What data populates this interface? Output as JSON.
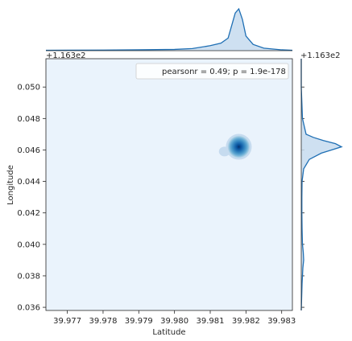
{
  "chart_data": {
    "type": "kde-joint",
    "title": "",
    "xlabel": "Latitude",
    "ylabel": "Longitude",
    "xlim": [
      39.9764,
      39.9833
    ],
    "ylim": [
      0.0358,
      0.0518
    ],
    "x_ticks": [
      "39.977",
      "39.978",
      "39.979",
      "39.980",
      "39.981",
      "39.982",
      "39.983"
    ],
    "x_tick_values": [
      39.977,
      39.978,
      39.979,
      39.98,
      39.981,
      39.982,
      39.983
    ],
    "y_ticks": [
      "0.036",
      "0.038",
      "0.040",
      "0.042",
      "0.044",
      "0.046",
      "0.048",
      "0.050"
    ],
    "y_tick_values": [
      0.036,
      0.038,
      0.04,
      0.042,
      0.044,
      0.046,
      0.048,
      0.05
    ],
    "y_offset_label": "+1.163e2",
    "top_offset_label": "+1.163e2",
    "right_offset_label": "+1.163e2",
    "legend_text": "pearsonr = 0.49; p = 1.9e-178",
    "legend_placement": "top-right",
    "density_peak": {
      "x": 39.9818,
      "y": 0.0462
    },
    "density_tail": {
      "x": 39.9814,
      "y": 0.0459
    },
    "colors": {
      "background": "#eaf3fc",
      "peak": "#08306b",
      "line": "#1f6fb4",
      "fill": "#c6dbef"
    },
    "marginal_x": {
      "x": [
        39.9764,
        39.977,
        39.978,
        39.979,
        39.98,
        39.9805,
        39.981,
        39.9813,
        39.9815,
        39.9816,
        39.9817,
        39.9818,
        39.9819,
        39.982,
        39.9822,
        39.9825,
        39.983,
        39.9833
      ],
      "density": [
        0.01,
        0.012,
        0.015,
        0.02,
        0.03,
        0.05,
        0.12,
        0.18,
        0.3,
        0.6,
        0.9,
        1.0,
        0.75,
        0.35,
        0.15,
        0.06,
        0.02,
        0.01
      ]
    },
    "marginal_y": {
      "y": [
        0.0358,
        0.0375,
        0.0385,
        0.039,
        0.0395,
        0.04,
        0.041,
        0.042,
        0.043,
        0.044,
        0.0448,
        0.0454,
        0.0458,
        0.046,
        0.0462,
        0.0464,
        0.0466,
        0.0468,
        0.047,
        0.048,
        0.05,
        0.0518
      ],
      "density": [
        0.0,
        0.02,
        0.04,
        0.06,
        0.05,
        0.03,
        0.02,
        0.015,
        0.015,
        0.02,
        0.06,
        0.2,
        0.5,
        0.75,
        1.0,
        0.85,
        0.55,
        0.3,
        0.12,
        0.03,
        0.0,
        0.0
      ]
    }
  }
}
